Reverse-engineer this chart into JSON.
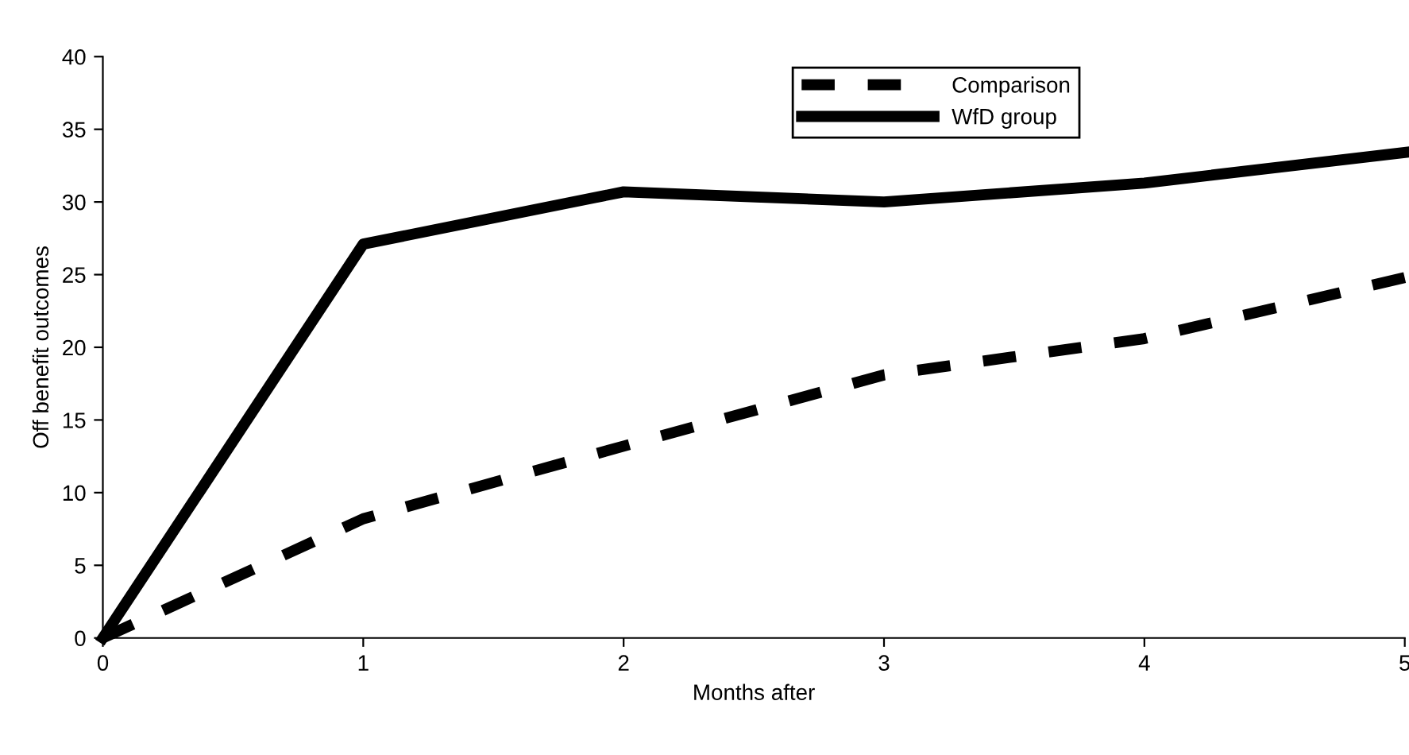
{
  "chart_data": {
    "type": "line",
    "xlabel": "Months after",
    "ylabel": "Off benefit outcomes",
    "x": [
      0,
      1,
      2,
      3,
      4,
      5
    ],
    "series": [
      {
        "name": "Comparison",
        "color": "#000000",
        "line_style": "dashed",
        "values": [
          0,
          8.2,
          13.2,
          18.1,
          20.6,
          24.8
        ]
      },
      {
        "name": "WfD group",
        "color": "#000000",
        "line_style": "solid",
        "values": [
          0,
          27.1,
          30.7,
          30.0,
          31.3,
          33.4
        ]
      }
    ],
    "xlim": [
      0,
      5
    ],
    "xticks": [
      0,
      1,
      2,
      3,
      4,
      5
    ],
    "ylim": [
      0,
      40
    ],
    "yticks": [
      0,
      5,
      10,
      15,
      20,
      25,
      30,
      35,
      40
    ],
    "grid": false,
    "legend": "top right",
    "marker": "none"
  }
}
